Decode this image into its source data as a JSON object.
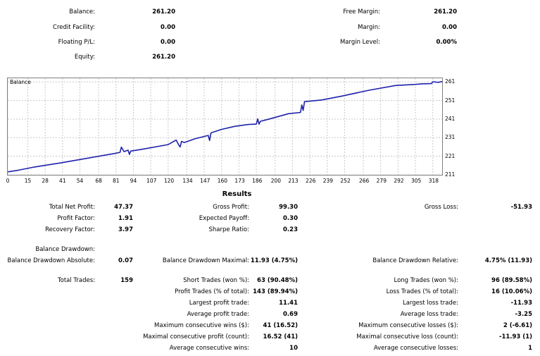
{
  "summary": {
    "balance_label": "Balance:",
    "balance": "261.20",
    "credit_label": "Credit Facility:",
    "credit": "0.00",
    "floating_label": "Floating P/L:",
    "floating": "0.00",
    "equity_label": "Equity:",
    "equity": "261.20",
    "free_margin_label": "Free Margin:",
    "free_margin": "261.20",
    "margin_label": "Margin:",
    "margin": "0.00",
    "margin_level_label": "Margin Level:",
    "margin_level": "0.00%"
  },
  "chart_data": {
    "type": "line",
    "title": "Balance",
    "xlabel": "",
    "ylabel": "",
    "xlim": [
      0,
      325
    ],
    "ylim": [
      211,
      263
    ],
    "x_ticks": [
      "0",
      "15",
      "28",
      "41",
      "54",
      "68",
      "81",
      "94",
      "107",
      "120",
      "134",
      "147",
      "160",
      "173",
      "186",
      "200",
      "213",
      "226",
      "239",
      "252",
      "266",
      "279",
      "292",
      "305",
      "318"
    ],
    "y_ticks": [
      "261",
      "251",
      "241",
      "231",
      "221",
      "211"
    ],
    "grid": true,
    "line_color": "#1e22aa",
    "series": [
      {
        "x": [
          0,
          8,
          20,
          40,
          60,
          80,
          84,
          85,
          87,
          90,
          91,
          92,
          100,
          120,
          126,
          128,
          129,
          130,
          132,
          140,
          150,
          151,
          152,
          153,
          160,
          170,
          180,
          186,
          187,
          188,
          189,
          195,
          210,
          219,
          220,
          221,
          222,
          235,
          250,
          270,
          290,
          305,
          310,
          317,
          318,
          322,
          325
        ],
        "y": [
          212.6,
          213.5,
          215.2,
          217.5,
          220.0,
          222.5,
          223.1,
          225.9,
          223.5,
          224.3,
          222.0,
          223.8,
          224.7,
          227.3,
          229.7,
          227.0,
          226.0,
          229.0,
          228.4,
          230.4,
          232.2,
          229.5,
          233.5,
          233.8,
          235.5,
          237.1,
          238.1,
          238.3,
          241.1,
          238.3,
          239.8,
          240.9,
          243.9,
          244.6,
          248.6,
          245.7,
          250.4,
          251.3,
          253.4,
          256.5,
          259.1,
          259.7,
          260.0,
          260.1,
          261.1,
          260.8,
          261.2
        ]
      }
    ]
  },
  "results": {
    "title": "Results",
    "total_net_profit_label": "Total Net Profit:",
    "total_net_profit": "47.37",
    "gross_profit_label": "Gross Profit:",
    "gross_profit": "99.30",
    "gross_loss_label": "Gross Loss:",
    "gross_loss": "-51.93",
    "profit_factor_label": "Profit Factor:",
    "profit_factor": "1.91",
    "expected_payoff_label": "Expected Payoff:",
    "expected_payoff": "0.30",
    "recovery_factor_label": "Recovery Factor:",
    "recovery_factor": "3.97",
    "sharpe_label": "Sharpe Ratio:",
    "sharpe": "0.23",
    "balance_drawdown_label": "Balance Drawdown:",
    "bd_absolute_label": "Balance Drawdown Absolute:",
    "bd_absolute": "0.07",
    "bd_maximal_label": "Balance Drawdown Maximal:",
    "bd_maximal": "11.93 (4.75%)",
    "bd_relative_label": "Balance Drawdown Relative:",
    "bd_relative": "4.75% (11.93)",
    "total_trades_label": "Total Trades:",
    "total_trades": "159",
    "short_trades_label": "Short Trades (won %):",
    "short_trades": "63 (90.48%)",
    "long_trades_label": "Long Trades (won %):",
    "long_trades": "96 (89.58%)",
    "profit_trades_label": "Profit Trades (% of total):",
    "profit_trades": "143 (89.94%)",
    "loss_trades_label": "Loss Trades (% of total):",
    "loss_trades": "16 (10.06%)",
    "largest_profit_label": "Largest profit trade:",
    "largest_profit": "11.41",
    "largest_loss_label": "Largest loss trade:",
    "largest_loss": "-11.93",
    "avg_profit_label": "Average profit trade:",
    "avg_profit": "0.69",
    "avg_loss_label": "Average loss trade:",
    "avg_loss": "-3.25",
    "max_consec_wins_label": "Maximum consecutive wins ($):",
    "max_consec_wins": "41 (16.52)",
    "max_consec_losses_label": "Maximum consecutive losses ($):",
    "max_consec_losses": "2 (-6.61)",
    "maximal_consec_profit_label": "Maximal consecutive profit (count):",
    "maximal_consec_profit": "16.52 (41)",
    "maximal_consec_loss_label": "Maximal consecutive loss (count):",
    "maximal_consec_loss": "-11.93 (1)",
    "avg_consec_wins_label": "Average consecutive wins:",
    "avg_consec_wins": "10",
    "avg_consec_losses_label": "Average consecutive losses:",
    "avg_consec_losses": "1"
  }
}
